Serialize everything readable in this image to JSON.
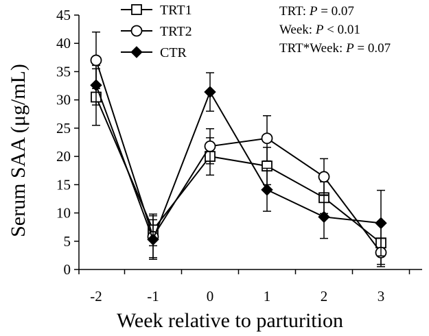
{
  "chart_data": {
    "type": "line",
    "xlabel": "Week relative to parturition",
    "ylabel": "Serum SAA (μg/mL)",
    "categories": [
      "-2",
      "-1",
      "0",
      "1",
      "2",
      "3"
    ],
    "ylim": [
      0,
      45
    ],
    "yticks": [
      "0",
      "5",
      "10",
      "15",
      "20",
      "25",
      "30",
      "35",
      "40",
      "45"
    ],
    "grid": false,
    "legend_position": "top-left",
    "series": [
      {
        "name": "TRT1",
        "marker": "open-square",
        "values": [
          30.5,
          7.0,
          20.0,
          18.3,
          12.7,
          4.7
        ],
        "errors": [
          5.0,
          2.8,
          3.3,
          3.3,
          2.8,
          3.8
        ]
      },
      {
        "name": "TRT2",
        "marker": "open-circle",
        "values": [
          37.0,
          5.8,
          21.8,
          23.2,
          16.4,
          3.0
        ],
        "errors": [
          5.0,
          3.7,
          3.1,
          4.0,
          3.2,
          2.5
        ]
      },
      {
        "name": "CTR",
        "marker": "filled-diamond",
        "values": [
          32.6,
          5.3,
          31.4,
          14.1,
          9.3,
          8.2
        ],
        "errors": [
          3.5,
          3.5,
          3.4,
          3.8,
          3.8,
          5.8
        ]
      }
    ],
    "annotations": [
      [
        {
          "t": "TRT: "
        },
        {
          "t": "P",
          "i": true
        },
        {
          "t": " = 0.07"
        }
      ],
      [
        {
          "t": "Week: "
        },
        {
          "t": "P",
          "i": true
        },
        {
          "t": " < 0.01"
        }
      ],
      [
        {
          "t": "TRT*Week: "
        },
        {
          "t": "P",
          "i": true
        },
        {
          "t": " = 0.07"
        }
      ]
    ],
    "colors": {
      "line": "#000000",
      "fill": "#ffffff"
    }
  }
}
